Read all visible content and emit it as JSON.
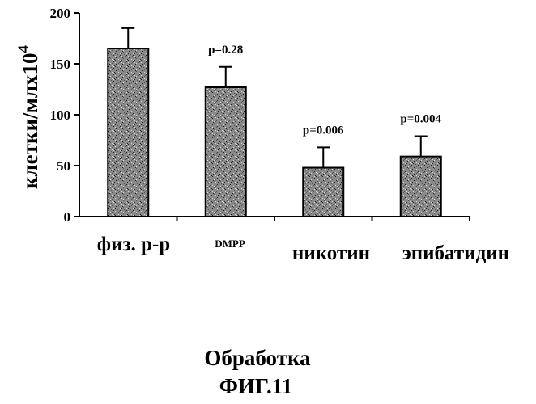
{
  "chart_data": {
    "type": "bar",
    "categories": [
      "физ. р-р",
      "DMPP",
      "никотин",
      "эпибатидин"
    ],
    "values": [
      165,
      127,
      48,
      59
    ],
    "errors": [
      20,
      20,
      20,
      20
    ],
    "annotations": [
      "",
      "p=0.28",
      "p=0.006",
      "p=0.004"
    ],
    "ylabel": "клетки/млх10",
    "ylabel_exponent": "4",
    "xlabel": "Обработка",
    "ylim": [
      0,
      200
    ],
    "yticks": [
      0,
      50,
      100,
      150,
      200
    ],
    "grid": false
  },
  "figure_label": "ФИГ.11"
}
